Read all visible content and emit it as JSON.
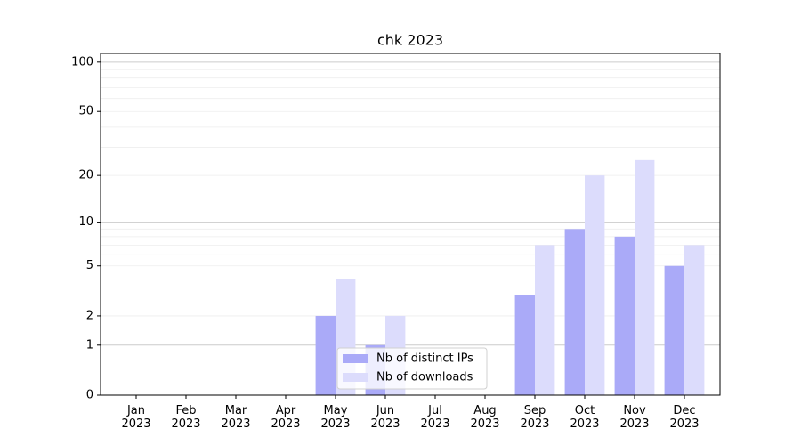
{
  "chart_data": {
    "type": "bar",
    "title": "chk 2023",
    "categories": [
      "Jan\n2023",
      "Feb\n2023",
      "Mar\n2023",
      "Apr\n2023",
      "May\n2023",
      "Jun\n2023",
      "Jul\n2023",
      "Aug\n2023",
      "Sep\n2023",
      "Oct\n2023",
      "Nov\n2023",
      "Dec\n2023"
    ],
    "series": [
      {
        "name": "Nb of distinct IPs",
        "color": "#aaaaf8",
        "values": [
          0,
          0,
          0,
          0,
          2,
          1,
          0,
          0,
          3,
          9,
          8,
          5
        ]
      },
      {
        "name": "Nb of downloads",
        "color": "#dcdcfc",
        "values": [
          0,
          0,
          0,
          0,
          4,
          2,
          0,
          0,
          7,
          20,
          25,
          7
        ]
      }
    ],
    "yscale": "log1p",
    "ylim": [
      0,
      113
    ],
    "yticks": [
      0,
      1,
      2,
      5,
      10,
      20,
      50,
      100
    ],
    "ymajorgrid": [
      1,
      10,
      100
    ],
    "yminorgrid": [
      2,
      3,
      4,
      5,
      6,
      7,
      8,
      9,
      20,
      30,
      40,
      50,
      60,
      70,
      80,
      90
    ],
    "grid": true,
    "legend": "lower center"
  }
}
